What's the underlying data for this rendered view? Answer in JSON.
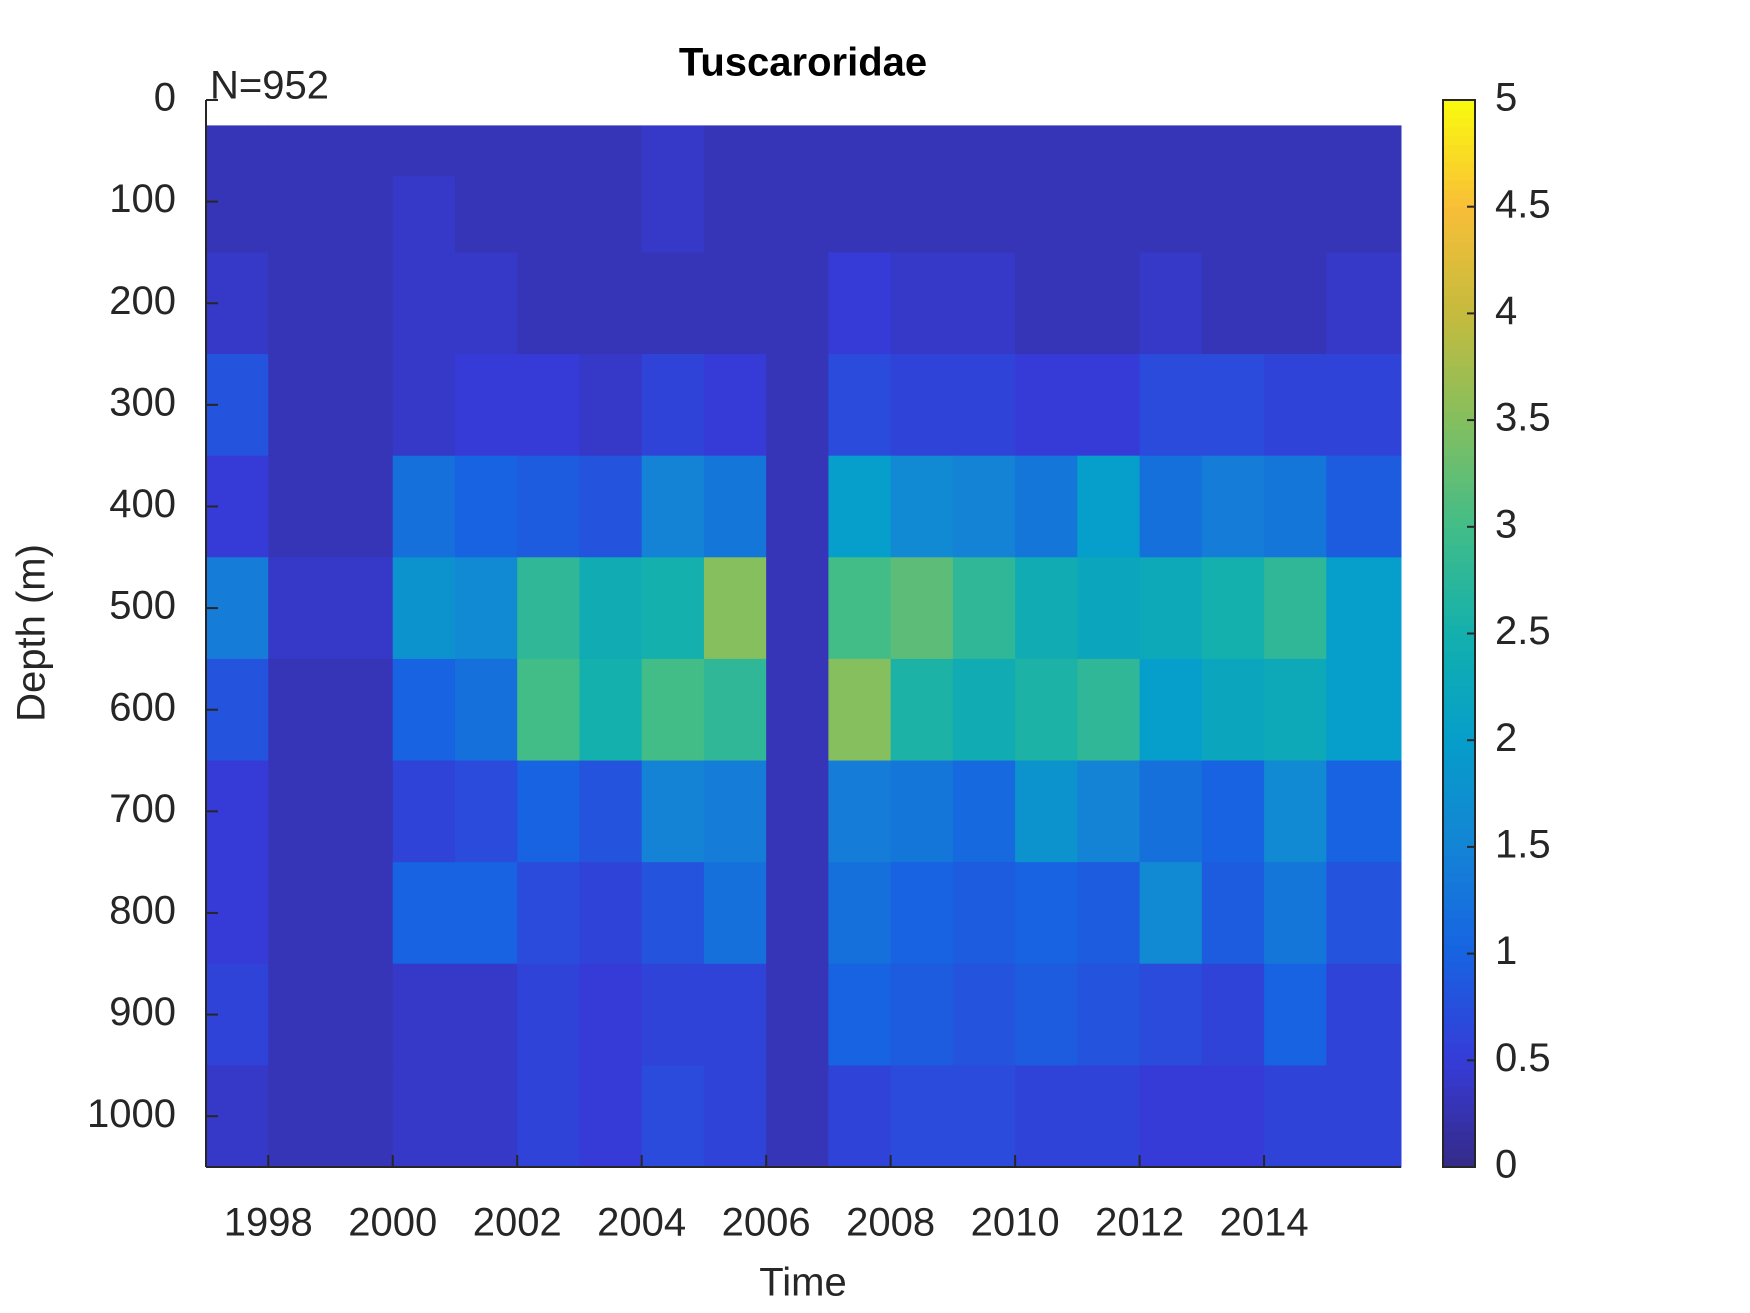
{
  "chart_data": {
    "type": "heatmap",
    "title": "Tuscaroridae",
    "annotation": "N=952",
    "x_label": "Time",
    "y_label": "Depth (m)",
    "x_edges": [
      1997,
      1998,
      1999,
      2000,
      2001,
      2002,
      2003,
      2004,
      2005,
      2006,
      2007,
      2008,
      2009,
      2010,
      2011,
      2012,
      2013,
      2014,
      2015,
      2016.2
    ],
    "y_edges": [
      25,
      75,
      150,
      250,
      350,
      450,
      550,
      650,
      750,
      850,
      950,
      1050
    ],
    "values": [
      [
        0.3,
        0.3,
        0.3,
        0.3,
        0.3,
        0.3,
        0.3,
        0.4,
        0.3,
        0.3,
        0.3,
        0.3,
        0.3,
        0.3,
        0.3,
        0.3,
        0.3,
        0.3,
        0.3
      ],
      [
        0.3,
        0.3,
        0.3,
        0.4,
        0.3,
        0.3,
        0.3,
        0.4,
        0.3,
        0.3,
        0.3,
        0.3,
        0.3,
        0.3,
        0.3,
        0.3,
        0.3,
        0.3,
        0.3
      ],
      [
        0.4,
        0.3,
        0.3,
        0.4,
        0.4,
        0.3,
        0.3,
        0.3,
        0.3,
        0.3,
        0.5,
        0.4,
        0.4,
        0.3,
        0.3,
        0.4,
        0.3,
        0.3,
        0.4
      ],
      [
        0.8,
        0.3,
        0.3,
        0.4,
        0.5,
        0.5,
        0.4,
        0.6,
        0.5,
        0.3,
        0.7,
        0.6,
        0.6,
        0.5,
        0.5,
        0.7,
        0.7,
        0.6,
        0.6
      ],
      [
        0.5,
        0.3,
        0.3,
        1.2,
        1.0,
        0.9,
        0.8,
        1.5,
        1.3,
        0.3,
        2.0,
        1.6,
        1.5,
        1.3,
        2.0,
        1.2,
        1.4,
        1.3,
        0.9
      ],
      [
        1.4,
        0.4,
        0.4,
        1.8,
        1.6,
        2.8,
        2.4,
        2.5,
        3.5,
        0.3,
        3.0,
        3.2,
        2.8,
        2.4,
        2.2,
        2.3,
        2.5,
        2.8,
        2.0
      ],
      [
        0.8,
        0.3,
        0.3,
        1.0,
        1.2,
        3.0,
        2.5,
        3.0,
        2.8,
        0.3,
        3.5,
        2.6,
        2.4,
        2.6,
        2.8,
        2.0,
        2.2,
        2.3,
        2.0
      ],
      [
        0.5,
        0.3,
        0.3,
        0.6,
        0.7,
        1.0,
        0.8,
        1.5,
        1.4,
        0.3,
        1.4,
        1.3,
        1.1,
        1.8,
        1.5,
        1.2,
        1.0,
        1.6,
        1.0
      ],
      [
        0.5,
        0.3,
        0.3,
        1.0,
        1.0,
        0.7,
        0.6,
        0.8,
        1.2,
        0.3,
        1.2,
        1.0,
        0.9,
        1.0,
        0.9,
        1.6,
        0.9,
        1.3,
        0.8
      ],
      [
        0.6,
        0.3,
        0.3,
        0.4,
        0.4,
        0.6,
        0.5,
        0.6,
        0.6,
        0.3,
        1.0,
        0.9,
        0.8,
        0.9,
        0.8,
        0.7,
        0.6,
        1.0,
        0.6
      ],
      [
        0.4,
        0.3,
        0.3,
        0.4,
        0.4,
        0.6,
        0.5,
        0.7,
        0.6,
        0.3,
        0.6,
        0.7,
        0.7,
        0.6,
        0.6,
        0.5,
        0.5,
        0.6,
        0.6
      ]
    ],
    "xlim": [
      1997,
      2016.2
    ],
    "xticks": [
      1998,
      2000,
      2002,
      2004,
      2006,
      2008,
      2010,
      2012,
      2014
    ],
    "ylim": [
      0,
      1050
    ],
    "y_reversed": true,
    "yticks": [
      0,
      100,
      200,
      300,
      400,
      500,
      600,
      700,
      800,
      900,
      1000
    ],
    "colormap": "parula",
    "clim": [
      0,
      5
    ],
    "cticks": [
      0,
      0.5,
      1,
      1.5,
      2,
      2.5,
      3,
      3.5,
      4,
      4.5,
      5
    ]
  }
}
